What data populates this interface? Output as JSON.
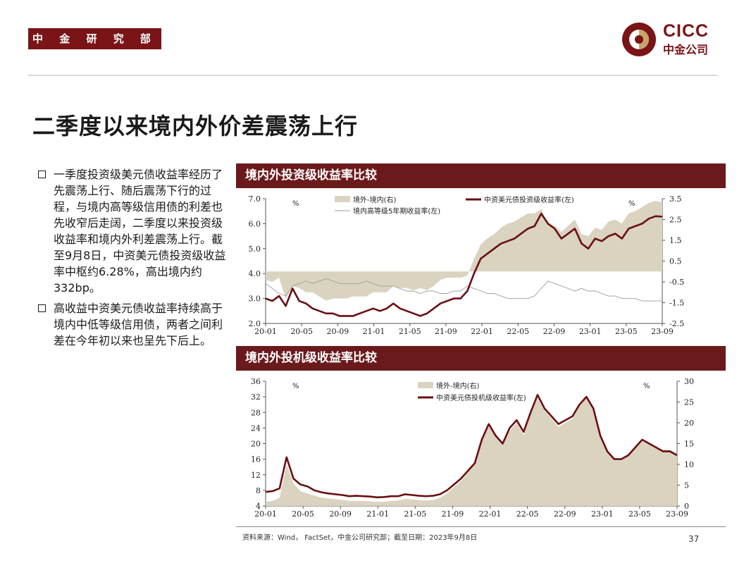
{
  "header": {
    "department": "中 金 研 究 部",
    "logo_en": "CICC",
    "logo_cn": "中金公司"
  },
  "title": "二季度以来境内外价差震荡上行",
  "bullets": [
    "一季度投资级美元债收益率经历了先震荡上行、随后震荡下行的过程，与境内高等级信用债的利差也先收窄后走阔，二季度以来投资级收益率和境内外利差震荡上行。截至9月8日，中资美元债投资级收益率中枢约6.28%，高出境内约332bp。",
    "高收益中资美元债收益率持续高于境内中低等级信用债，两者之间利差在今年初以来也呈先下后上。"
  ],
  "source": "资料来源：Wind， FactSet，中金公司研究部；截至日期：2023年9月8日",
  "page_number": "37",
  "colors": {
    "brand": "#7a1416",
    "line": "#6b0f12",
    "area": "#d9d3c0",
    "thin": "#9e9e9e"
  },
  "chart_data": [
    {
      "panel_title": "境内外投资级收益率比较",
      "type": "line",
      "x_ticks": [
        "20-01",
        "20-05",
        "20-09",
        "21-01",
        "21-05",
        "21-09",
        "22-01",
        "22-05",
        "22-09",
        "23-01",
        "23-05",
        "23-09"
      ],
      "y_left": {
        "range": [
          2.0,
          7.0
        ],
        "ticks": [
          "2.0",
          "3.0",
          "4.0",
          "5.0",
          "6.0",
          "7.0"
        ],
        "unit": "%"
      },
      "y_right": {
        "range": [
          -2.5,
          3.5
        ],
        "ticks": [
          "-2.5",
          "-1.5",
          "-0.5",
          "0.5",
          "1.5",
          "2.5",
          "3.5"
        ],
        "unit": "%"
      },
      "legend": [
        "境外-境内(右)",
        "中资美元债投资级收益率(左)",
        "境内高等级5年期收益率(左)"
      ],
      "series": [
        {
          "name": "中资美元债投资级收益率(左)",
          "axis": "left",
          "kind": "line",
          "values": [
            3.0,
            2.9,
            3.1,
            2.7,
            3.4,
            2.9,
            2.8,
            2.6,
            2.5,
            2.4,
            2.4,
            2.3,
            2.3,
            2.3,
            2.4,
            2.5,
            2.6,
            2.5,
            2.6,
            2.8,
            2.6,
            2.5,
            2.4,
            2.3,
            2.4,
            2.6,
            2.8,
            2.9,
            3.0,
            3.0,
            3.3,
            4.0,
            4.6,
            4.8,
            5.0,
            5.2,
            5.3,
            5.4,
            5.6,
            5.8,
            5.9,
            6.4,
            6.0,
            5.8,
            5.4,
            5.6,
            5.8,
            5.2,
            5.0,
            5.4,
            5.3,
            5.5,
            5.6,
            5.4,
            5.8,
            5.9,
            6.0,
            6.2,
            6.3,
            6.28
          ]
        },
        {
          "name": "境内高等级5年期收益率(左)",
          "axis": "left",
          "kind": "thin",
          "values": [
            3.6,
            3.4,
            3.2,
            3.1,
            3.5,
            3.6,
            3.7,
            3.6,
            3.7,
            3.8,
            3.7,
            3.6,
            3.6,
            3.6,
            3.6,
            3.7,
            3.6,
            3.5,
            3.5,
            3.5,
            3.4,
            3.3,
            3.3,
            3.2,
            3.3,
            3.3,
            3.2,
            3.2,
            3.3,
            3.3,
            3.5,
            3.4,
            3.3,
            3.2,
            3.2,
            3.1,
            3.0,
            3.0,
            3.0,
            3.0,
            3.1,
            3.4,
            3.7,
            3.6,
            3.5,
            3.4,
            3.3,
            3.4,
            3.3,
            3.3,
            3.2,
            3.1,
            3.1,
            3.0,
            3.0,
            3.0,
            2.9,
            2.9,
            2.9,
            2.9
          ]
        },
        {
          "name": "境外-境内(右)",
          "axis": "right",
          "kind": "area",
          "values": [
            -0.4,
            -0.5,
            -0.3,
            -1.3,
            -0.7,
            -0.8,
            -1.0,
            -1.0,
            -1.2,
            -1.4,
            -1.3,
            -1.3,
            -1.3,
            -1.2,
            -1.2,
            -1.2,
            -1.0,
            -1.0,
            -1.0,
            -0.7,
            -0.8,
            -0.8,
            -0.9,
            -0.8,
            -0.9,
            -0.7,
            -0.4,
            -0.3,
            -0.3,
            -0.3,
            -0.2,
            0.6,
            1.3,
            1.6,
            1.8,
            2.1,
            2.3,
            2.4,
            2.6,
            2.8,
            2.8,
            3.0,
            2.3,
            2.2,
            1.9,
            2.2,
            2.5,
            1.8,
            1.7,
            2.1,
            2.0,
            2.4,
            2.5,
            2.3,
            2.8,
            2.9,
            3.1,
            3.3,
            3.4,
            3.32
          ]
        }
      ]
    },
    {
      "panel_title": "境内外投机级收益率比较",
      "type": "line",
      "x_ticks": [
        "20-01",
        "20-05",
        "20-09",
        "21-01",
        "21-05",
        "21-09",
        "22-01",
        "22-05",
        "22-09",
        "23-01",
        "23-05",
        "23-09"
      ],
      "y_left": {
        "range": [
          4,
          36
        ],
        "ticks": [
          "4",
          "8",
          "12",
          "16",
          "20",
          "24",
          "28",
          "32",
          "36"
        ],
        "unit": "%"
      },
      "y_right": {
        "range": [
          0,
          30
        ],
        "ticks": [
          "0",
          "5",
          "10",
          "15",
          "20",
          "25",
          "30"
        ],
        "unit": "%"
      },
      "legend": [
        "境外-境内(右)",
        "中资美元债投机级收益率(左)"
      ],
      "series": [
        {
          "name": "中资美元债投机级收益率(左)",
          "axis": "left",
          "kind": "line",
          "values": [
            7.6,
            7.8,
            8.5,
            16.5,
            11,
            9.5,
            9,
            8,
            7.5,
            7.2,
            7,
            6.8,
            6.5,
            6.6,
            6.5,
            6.4,
            6.2,
            6.3,
            6.5,
            6.5,
            7,
            6.8,
            6.6,
            6.5,
            6.6,
            7,
            8,
            9.5,
            11,
            13,
            15,
            21,
            25,
            22,
            20,
            24,
            26,
            23,
            28,
            32.5,
            29,
            27,
            25,
            26,
            27,
            30,
            32,
            29,
            22,
            18,
            16,
            16,
            17,
            19,
            21,
            20,
            19,
            18,
            18,
            17
          ]
        },
        {
          "name": "境外-境内(右)",
          "axis": "right",
          "kind": "area",
          "values": [
            1,
            1.2,
            2,
            10,
            5.5,
            3.5,
            3,
            2.5,
            2,
            1.8,
            1.6,
            1.5,
            1.2,
            1.2,
            1.2,
            1.1,
            1,
            1,
            1.2,
            1.3,
            1.7,
            1.6,
            1.4,
            1.3,
            1.4,
            2,
            3,
            4.5,
            6,
            8,
            10,
            15.5,
            19,
            17,
            15,
            18,
            20,
            17,
            22,
            26,
            23,
            21,
            19,
            20,
            21,
            24,
            26,
            23,
            17,
            13,
            11,
            11,
            12,
            14,
            15.5,
            15,
            14,
            13.5,
            13.5,
            12.5
          ]
        }
      ]
    }
  ]
}
